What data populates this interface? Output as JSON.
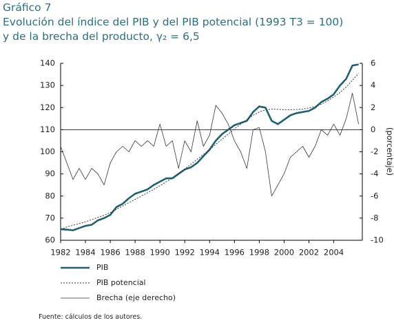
{
  "chart_data": {
    "type": "line",
    "title": "Gráfico 7",
    "subtitle": [
      "Evolución del índice del PIB y del PIB potencial (1993 T3 = 100)",
      "y de la brecha del producto, γ₂ = 6,5"
    ],
    "y2_label": "(porcentaje)",
    "source": "Fuente: cálculos de los autores.",
    "x": [
      1982,
      1982.5,
      1983,
      1983.5,
      1984,
      1984.5,
      1985,
      1985.5,
      1986,
      1986.5,
      1987,
      1987.5,
      1988,
      1988.5,
      1989,
      1989.5,
      1990,
      1990.5,
      1991,
      1991.5,
      1992,
      1992.5,
      1993,
      1993.5,
      1994,
      1994.5,
      1995,
      1995.5,
      1996,
      1996.5,
      1997,
      1997.5,
      1998,
      1998.5,
      1999,
      1999.5,
      2000,
      2000.5,
      2001,
      2001.5,
      2002,
      2002.5,
      2003,
      2003.5,
      2004,
      2004.5,
      2005,
      2005.5,
      2006
    ],
    "series": [
      {
        "name": "PIB",
        "color": "#1f5f6e",
        "style": "solid",
        "width": 2.6,
        "values": [
          65,
          64.8,
          64.5,
          65.5,
          66.5,
          67,
          69,
          70,
          71.5,
          75,
          76.5,
          79,
          81,
          82,
          83,
          85,
          86.5,
          88,
          88,
          90,
          92,
          93,
          95,
          98,
          101,
          105,
          108,
          110,
          112,
          113,
          114,
          118,
          120.5,
          120,
          114,
          112.5,
          114.5,
          116.5,
          117.5,
          118,
          118.5,
          120,
          122.5,
          124,
          126,
          130,
          133,
          139,
          139.5
        ]
      },
      {
        "name": "PIB potencial",
        "color": "#333333",
        "style": "dotted",
        "width": 1,
        "values": [
          65,
          66,
          66.8,
          67.5,
          68.3,
          69.3,
          70.3,
          71.3,
          72.5,
          74,
          75.5,
          77,
          78.5,
          80,
          81.5,
          83,
          84.7,
          86.4,
          88.2,
          90.2,
          92.2,
          94.4,
          96.6,
          98.8,
          101,
          103.4,
          105.7,
          108,
          110.3,
          112.5,
          114.5,
          116.5,
          118,
          119,
          119.3,
          119.2,
          119,
          119,
          119.1,
          119.3,
          119.8,
          120.5,
          121.5,
          123,
          124.8,
          126.8,
          129.3,
          132.3,
          135.5
        ]
      },
      {
        "name": "Brecha (eje derecho)",
        "color": "#333333",
        "style": "solid",
        "width": 0.8,
        "axis": "y2",
        "values": [
          -1.5,
          -3,
          -4.5,
          -3.5,
          -4.5,
          -3.5,
          -4,
          -5,
          -3,
          -2,
          -1.5,
          -2,
          -1,
          -1.5,
          -1,
          -1.5,
          0.5,
          -1.5,
          -1,
          -3.5,
          -1,
          -2,
          0.8,
          -1.5,
          -0.5,
          2.2,
          1.5,
          0.5,
          -1,
          -2,
          -3.5,
          0,
          0.2,
          -2,
          -6,
          -5,
          -4,
          -2.5,
          -2,
          -1.5,
          -2.5,
          -1.5,
          0,
          -0.5,
          0.5,
          -0.5,
          1,
          3.3,
          0.5
        ]
      }
    ],
    "xlim": [
      1982,
      2006.3
    ],
    "xticks": [
      1982,
      1984,
      1986,
      1988,
      1990,
      1992,
      1994,
      1996,
      1998,
      2000,
      2002,
      2004
    ],
    "ylim": [
      60,
      140
    ],
    "yticks": [
      60,
      70,
      80,
      90,
      100,
      110,
      120,
      130,
      140
    ],
    "y2lim": [
      -10,
      6
    ],
    "y2ticks": [
      -10,
      -8,
      -6,
      -4,
      -2,
      0,
      2,
      4,
      6
    ]
  }
}
